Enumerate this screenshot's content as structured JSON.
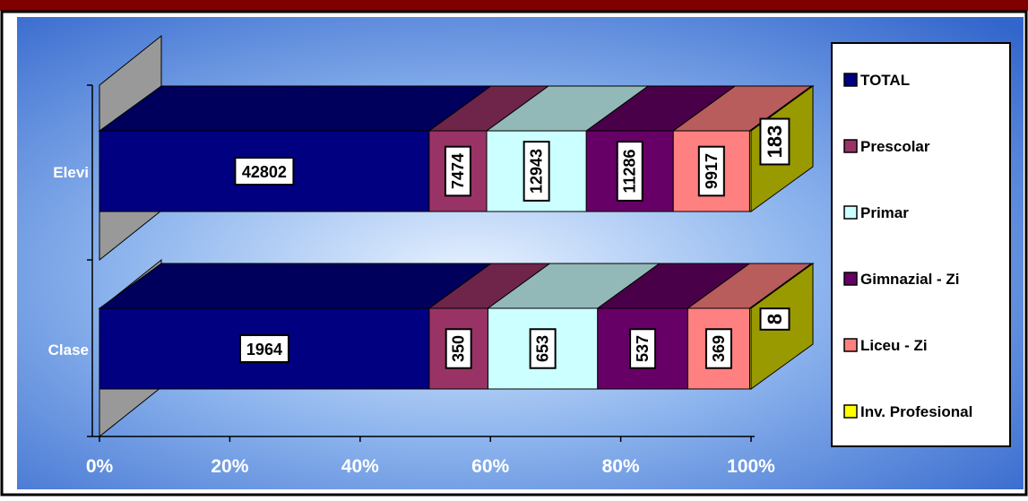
{
  "chart_data": {
    "type": "bar",
    "orientation": "horizontal",
    "stacking": "percent",
    "three_d": true,
    "categories": [
      "Elevi",
      "Clase"
    ],
    "series": [
      {
        "name": "TOTAL",
        "values": [
          42802,
          1964
        ],
        "color": "#000080"
      },
      {
        "name": "Prescolar",
        "values": [
          7474,
          350
        ],
        "color": "#993366"
      },
      {
        "name": "Primar",
        "values": [
          12943,
          653
        ],
        "color": "#CCFFFF"
      },
      {
        "name": "Gimnazial - Zi",
        "values": [
          11286,
          537
        ],
        "color": "#660066"
      },
      {
        "name": "Liceu - Zi",
        "values": [
          9917,
          369
        ],
        "color": "#FF8080"
      },
      {
        "name": "Inv. Profesional",
        "values": [
          183,
          8
        ],
        "color": "#FFFF00"
      }
    ],
    "x_ticks": [
      "0%",
      "20%",
      "40%",
      "60%",
      "80%",
      "100%"
    ],
    "xlim": [
      0,
      100
    ],
    "legend_position": "right",
    "background": "blue-gradient"
  }
}
